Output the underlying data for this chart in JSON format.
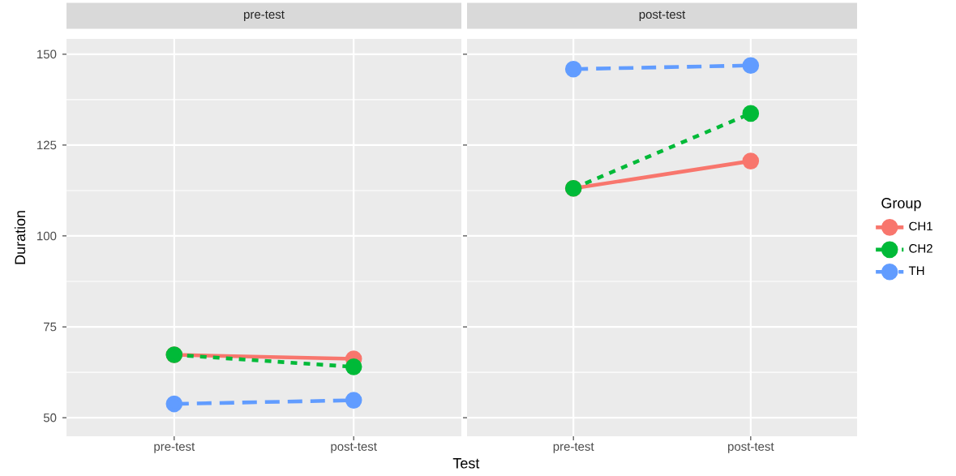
{
  "chart_data": [
    {
      "type": "line",
      "title": "pre-test",
      "ylabel": "Duration",
      "xlabel": "Test",
      "categories": [
        "pre-test",
        "post-test"
      ],
      "ylim": [
        44.9,
        154.2
      ],
      "yticks": [
        50,
        75,
        100,
        125,
        150
      ],
      "grid": true,
      "legend": false,
      "marker": "circle",
      "series": [
        {
          "color": "#f8766d",
          "line_style": "solid",
          "values": [
            67.3,
            66.2
          ]
        },
        {
          "color": "#00ba38",
          "line_style": "dotted",
          "values": [
            67.3,
            64.0
          ]
        },
        {
          "color": "#619cff",
          "line_style": "dashed",
          "values": [
            53.8,
            54.8
          ]
        }
      ]
    },
    {
      "type": "line",
      "title": "post-test",
      "categories": [
        "pre-test",
        "post-test"
      ],
      "ylim": [
        44.9,
        154.2
      ],
      "yticks": [
        50,
        75,
        100,
        125,
        150
      ],
      "grid": true,
      "legend": "right",
      "legend_title": "Group",
      "marker": "circle",
      "tick_labels": "x",
      "series": [
        {
          "name": "CH1",
          "color": "#f8766d",
          "line_style": "solid",
          "values": [
            113.1,
            120.6
          ]
        },
        {
          "name": "CH2",
          "color": "#00ba38",
          "line_style": "dotted",
          "values": [
            113.1,
            133.7
          ]
        },
        {
          "name": "TH",
          "color": "#619cff",
          "line_style": "dashed",
          "values": [
            145.9,
            146.9
          ]
        }
      ]
    }
  ]
}
